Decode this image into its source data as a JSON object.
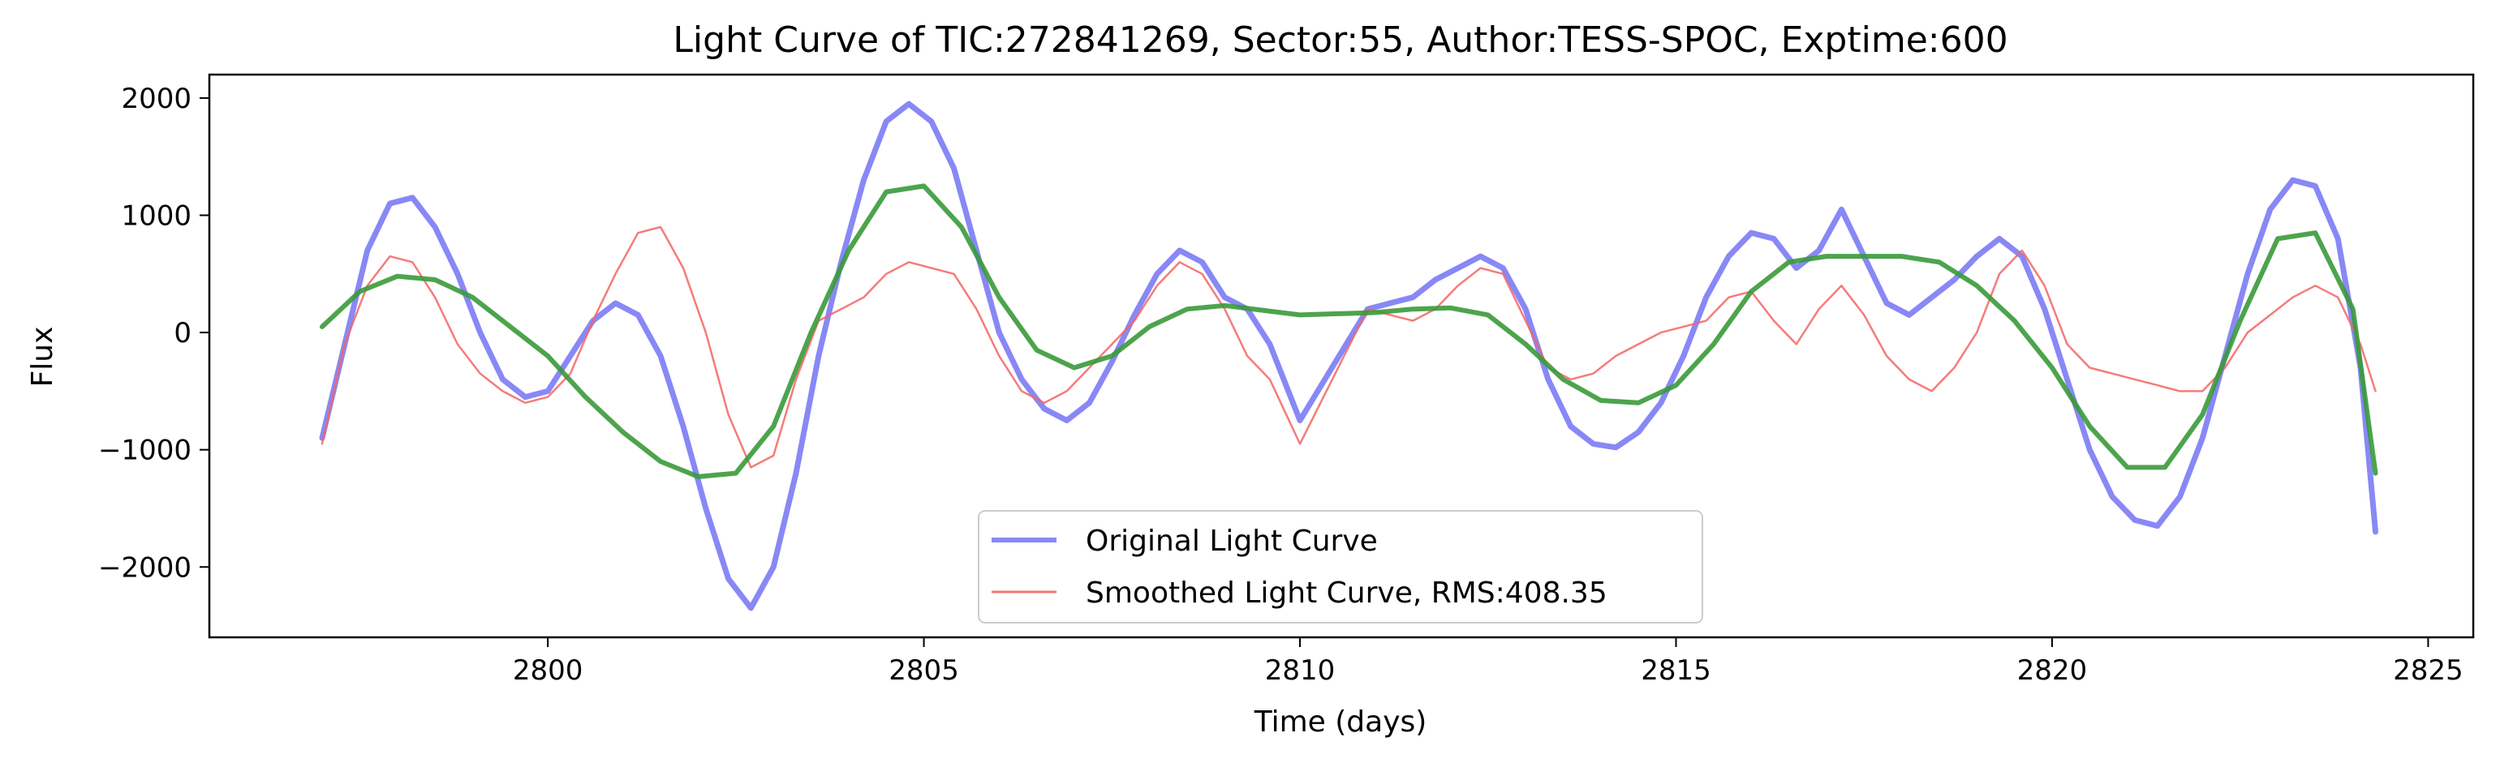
{
  "chart_data": {
    "type": "line",
    "title": "Light Curve of TIC:272841269, Sector:55, Author:TESS-SPOC, Exptime:600",
    "xlabel": "Time (days)",
    "ylabel": "Flux",
    "xlim": [
      2795.5,
      2825.6
    ],
    "ylim": [
      -2600,
      2200
    ],
    "x_ticks": [
      2800,
      2805,
      2810,
      2815,
      2820,
      2825
    ],
    "x_tick_labels": [
      "2800",
      "2805",
      "2810",
      "2815",
      "2820",
      "2825"
    ],
    "y_ticks": [
      -2000,
      -1000,
      0,
      1000,
      2000
    ],
    "y_tick_labels": [
      "−2000",
      "−1000",
      "0",
      "1000",
      "2000"
    ],
    "grid": false,
    "legend_position": "lower-center",
    "series": [
      {
        "name": "Original Light Curve",
        "color": "#7b7bf5",
        "in_legend": true,
        "x": [
          2797.0,
          2797.3,
          2797.6,
          2797.9,
          2798.2,
          2798.5,
          2798.8,
          2799.1,
          2799.4,
          2799.7,
          2800.0,
          2800.3,
          2800.6,
          2800.9,
          2801.2,
          2801.5,
          2801.8,
          2802.1,
          2802.4,
          2802.7,
          2803.0,
          2803.3,
          2803.6,
          2803.9,
          2804.2,
          2804.5,
          2804.8,
          2805.1,
          2805.4,
          2805.7,
          2806.0,
          2806.3,
          2806.6,
          2806.9,
          2807.2,
          2807.5,
          2807.8,
          2808.1,
          2808.4,
          2808.7,
          2809.0,
          2809.3,
          2809.6,
          2810.0,
          2810.9,
          2811.2,
          2811.5,
          2811.8,
          2812.1,
          2812.4,
          2812.7,
          2813.0,
          2813.3,
          2813.6,
          2813.9,
          2814.2,
          2814.5,
          2814.8,
          2815.1,
          2815.4,
          2815.7,
          2816.0,
          2816.3,
          2816.6,
          2816.9,
          2817.2,
          2817.5,
          2817.8,
          2818.1,
          2818.4,
          2818.7,
          2819.0,
          2819.3,
          2819.6,
          2819.9,
          2820.2,
          2820.5,
          2820.8,
          2821.1,
          2821.4,
          2821.7,
          2822.0,
          2822.3,
          2822.6,
          2822.9,
          2823.2,
          2823.5,
          2823.8,
          2824.1,
          2824.3
        ],
        "y": [
          -900,
          -100,
          700,
          1100,
          1150,
          900,
          500,
          0,
          -400,
          -550,
          -500,
          -200,
          100,
          250,
          150,
          -200,
          -800,
          -1500,
          -2100,
          -2350,
          -2000,
          -1200,
          -200,
          600,
          1300,
          1800,
          1950,
          1800,
          1400,
          700,
          0,
          -400,
          -650,
          -750,
          -600,
          -250,
          150,
          500,
          700,
          600,
          300,
          200,
          -100,
          -750,
          200,
          250,
          300,
          450,
          550,
          650,
          550,
          200,
          -400,
          -800,
          -950,
          -980,
          -850,
          -600,
          -200,
          300,
          650,
          850,
          800,
          550,
          700,
          1050,
          650,
          250,
          150,
          300,
          450,
          650,
          800,
          650,
          200,
          -400,
          -1000,
          -1400,
          -1600,
          -1650,
          -1400,
          -900,
          -200,
          500,
          1050,
          1300,
          1250,
          800,
          -300,
          -1700
        ]
      },
      {
        "name": "Smoothed Light Curve, RMS:408.35",
        "color": "#f46464",
        "in_legend": true,
        "x": [
          2797.0,
          2797.3,
          2797.6,
          2797.9,
          2798.2,
          2798.5,
          2798.8,
          2799.1,
          2799.4,
          2799.7,
          2800.0,
          2800.3,
          2800.6,
          2800.9,
          2801.2,
          2801.5,
          2801.8,
          2802.1,
          2802.4,
          2802.7,
          2803.0,
          2803.3,
          2803.6,
          2803.9,
          2804.2,
          2804.5,
          2804.8,
          2805.1,
          2805.4,
          2805.7,
          2806.0,
          2806.3,
          2806.6,
          2806.9,
          2807.2,
          2807.5,
          2807.8,
          2808.1,
          2808.4,
          2808.7,
          2809.0,
          2809.3,
          2809.6,
          2810.0,
          2810.9,
          2811.2,
          2811.5,
          2811.8,
          2812.1,
          2812.4,
          2812.7,
          2813.0,
          2813.3,
          2813.6,
          2813.9,
          2814.2,
          2814.5,
          2814.8,
          2815.1,
          2815.4,
          2815.7,
          2816.0,
          2816.3,
          2816.6,
          2816.9,
          2817.2,
          2817.5,
          2817.8,
          2818.1,
          2818.4,
          2818.7,
          2819.0,
          2819.3,
          2819.6,
          2819.9,
          2820.2,
          2820.5,
          2820.8,
          2821.1,
          2821.4,
          2821.7,
          2822.0,
          2822.3,
          2822.6,
          2822.9,
          2823.2,
          2823.5,
          2823.8,
          2824.1,
          2824.3
        ],
        "y": [
          -950,
          -100,
          400,
          650,
          600,
          300,
          -100,
          -350,
          -500,
          -600,
          -550,
          -350,
          100,
          500,
          850,
          900,
          550,
          0,
          -700,
          -1150,
          -1050,
          -400,
          100,
          200,
          300,
          500,
          600,
          550,
          500,
          200,
          -200,
          -500,
          -600,
          -500,
          -300,
          -100,
          100,
          400,
          600,
          500,
          200,
          -200,
          -400,
          -950,
          200,
          150,
          100,
          200,
          400,
          550,
          500,
          100,
          -300,
          -400,
          -350,
          -200,
          -100,
          0,
          50,
          100,
          300,
          350,
          100,
          -100,
          200,
          400,
          150,
          -200,
          -400,
          -500,
          -300,
          0,
          500,
          700,
          400,
          -100,
          -300,
          -350,
          -400,
          -450,
          -500,
          -500,
          -300,
          0,
          150,
          300,
          400,
          300,
          -100,
          -500
        ]
      },
      {
        "name": "",
        "color": "#3a9a3a",
        "in_legend": false,
        "x": [
          2797.0,
          2797.5,
          2798.0,
          2798.5,
          2799.0,
          2799.5,
          2800.0,
          2800.5,
          2801.0,
          2801.5,
          2802.0,
          2802.5,
          2803.0,
          2803.5,
          2804.0,
          2804.5,
          2805.0,
          2805.5,
          2806.0,
          2806.5,
          2807.0,
          2807.5,
          2808.0,
          2808.5,
          2809.0,
          2809.5,
          2810.0,
          2810.5,
          2811.0,
          2811.5,
          2812.0,
          2812.5,
          2813.0,
          2813.5,
          2814.0,
          2814.5,
          2815.0,
          2815.5,
          2816.0,
          2816.5,
          2817.0,
          2817.5,
          2818.0,
          2818.5,
          2819.0,
          2819.5,
          2820.0,
          2820.5,
          2821.0,
          2821.5,
          2822.0,
          2822.5,
          2823.0,
          2823.5,
          2824.0,
          2824.3
        ],
        "y": [
          50,
          350,
          480,
          450,
          300,
          50,
          -200,
          -550,
          -850,
          -1100,
          -1230,
          -1200,
          -800,
          0,
          700,
          1200,
          1250,
          900,
          300,
          -150,
          -300,
          -200,
          50,
          200,
          230,
          190,
          150,
          160,
          170,
          200,
          210,
          150,
          -100,
          -400,
          -580,
          -600,
          -450,
          -100,
          350,
          600,
          650,
          650,
          650,
          600,
          400,
          100,
          -300,
          -800,
          -1150,
          -1150,
          -700,
          100,
          800,
          850,
          200,
          -1200
        ]
      }
    ]
  }
}
